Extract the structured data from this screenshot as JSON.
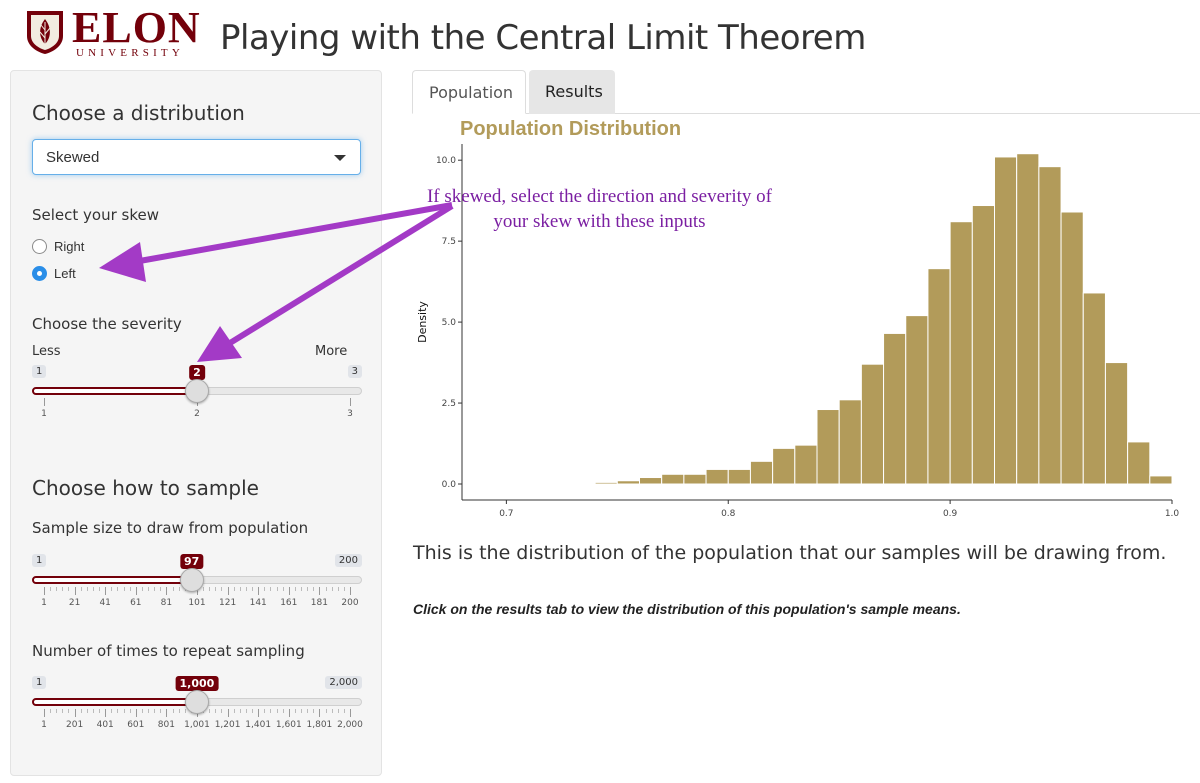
{
  "header": {
    "logo_word": "ELON",
    "logo_sub": "UNIVERSITY",
    "title": "Playing with the Central Limit Theorem"
  },
  "sidebar": {
    "distribution_heading": "Choose a distribution",
    "distribution_value": "Skewed",
    "skew_label": "Select your skew",
    "skew_options": [
      "Right",
      "Left"
    ],
    "skew_selected": "Left",
    "severity_label": "Choose the severity",
    "severity_less": "Less",
    "severity_more": "More",
    "severity_slider": {
      "min": "1",
      "max": "3",
      "value": "2",
      "value_num": 2,
      "min_num": 1,
      "max_num": 3,
      "ticks": [
        "1",
        "2",
        "3"
      ]
    },
    "sample_heading": "Choose how to sample",
    "sample_size_label": "Sample size to draw from population",
    "sample_size_slider": {
      "min": "1",
      "max": "200",
      "value": "97",
      "value_num": 97,
      "min_num": 1,
      "max_num": 200,
      "ticks": [
        "1",
        "21",
        "41",
        "61",
        "81",
        "101",
        "121",
        "141",
        "161",
        "181",
        "200"
      ]
    },
    "repeat_label": "Number of times to repeat sampling",
    "repeat_slider": {
      "min": "1",
      "max": "2,000",
      "value": "1,000",
      "value_num": 1000,
      "min_num": 1,
      "max_num": 2000,
      "ticks": [
        "1",
        "201",
        "401",
        "601",
        "801",
        "1,001",
        "1,201",
        "1,401",
        "1,601",
        "1,801",
        "2,000"
      ]
    }
  },
  "tabs": {
    "population": "Population",
    "results": "Results",
    "active": "Population"
  },
  "annotation": "If skewed, select the direction and severity of your skew with these inputs",
  "description": "This is the distribution of the population that our samples will be drawing from.",
  "note": "Click on the results tab to view the distribution of this population's sample means.",
  "colors": {
    "bar": "#b29b5a",
    "accent": "#73000a",
    "annotation": "#7b1fa2"
  },
  "chart_data": {
    "type": "bar",
    "title": "Population Distribution",
    "xlabel": "",
    "ylabel": "Density",
    "xlim": [
      0.68,
      1.0
    ],
    "ylim": [
      0,
      10.5
    ],
    "xticks": [
      "0.7",
      "0.8",
      "0.9",
      "1.0"
    ],
    "yticks": [
      "0.0",
      "2.5",
      "5.0",
      "7.5",
      "10.0"
    ],
    "bin_width": 0.01,
    "x": [
      0.72,
      0.73,
      0.74,
      0.75,
      0.76,
      0.77,
      0.78,
      0.79,
      0.8,
      0.81,
      0.82,
      0.83,
      0.84,
      0.85,
      0.86,
      0.87,
      0.88,
      0.89,
      0.9,
      0.91,
      0.92,
      0.93,
      0.94,
      0.95,
      0.96,
      0.97,
      0.98,
      0.99
    ],
    "values": [
      0.02,
      0.03,
      0.05,
      0.1,
      0.2,
      0.3,
      0.3,
      0.45,
      0.45,
      0.7,
      1.1,
      1.2,
      2.3,
      2.6,
      3.7,
      4.65,
      5.2,
      6.65,
      8.1,
      8.6,
      10.1,
      10.2,
      9.8,
      8.4,
      5.9,
      3.75,
      1.3,
      0.25
    ],
    "grid": false
  }
}
